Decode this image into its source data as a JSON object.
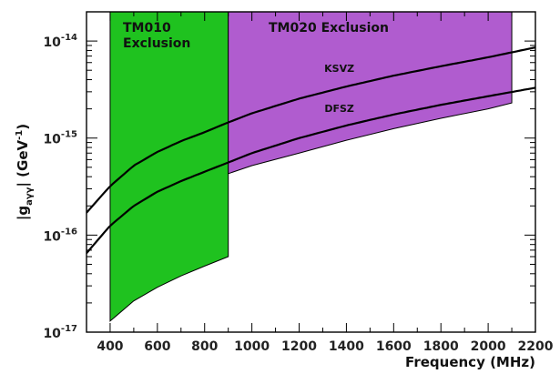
{
  "chart_data": {
    "type": "area",
    "xlabel": "Frequency (MHz)",
    "ylabel": "|g_{aγγ}| (GeV^{-1})",
    "xlim": [
      300,
      2200
    ],
    "ylim": [
      1e-17,
      2e-14
    ],
    "yscale": "log",
    "x_ticks": [
      400,
      600,
      800,
      1000,
      1200,
      1400,
      1600,
      1800,
      2000,
      2200
    ],
    "y_ticks": [
      {
        "value": 1e-17,
        "base": "10",
        "exp": "-17"
      },
      {
        "value": 1e-16,
        "base": "10",
        "exp": "-16"
      },
      {
        "value": 1e-15,
        "base": "10",
        "exp": "-15"
      },
      {
        "value": 1e-14,
        "base": "10",
        "exp": "-14"
      }
    ],
    "regions": [
      {
        "label_lines": [
          "TM010",
          "Exclusion"
        ],
        "color": "#1fc21f",
        "x_range": [
          400,
          900
        ],
        "lower": [
          [
            400,
            1.3e-17
          ],
          [
            500,
            2.1e-17
          ],
          [
            600,
            2.9e-17
          ],
          [
            700,
            3.8e-17
          ],
          [
            800,
            4.8e-17
          ],
          [
            900,
            6e-17
          ]
        ],
        "upper": 2e-14
      },
      {
        "label_lines": [
          "TM020 Exclusion"
        ],
        "color": "#b05ccf",
        "x_range": [
          900,
          2100
        ],
        "lower": [
          [
            900,
            4.3e-16
          ],
          [
            1000,
            5.2e-16
          ],
          [
            1200,
            7e-16
          ],
          [
            1400,
            9.5e-16
          ],
          [
            1600,
            1.25e-15
          ],
          [
            1800,
            1.6e-15
          ],
          [
            2000,
            2e-15
          ],
          [
            2100,
            2.3e-15
          ]
        ],
        "upper": 2e-14
      }
    ],
    "series": [
      {
        "name": "KSVZ",
        "x": [
          300,
          400,
          500,
          600,
          700,
          800,
          900,
          1000,
          1200,
          1400,
          1600,
          1800,
          2000,
          2200
        ],
        "values": [
          1.7e-16,
          3.2e-16,
          5.2e-16,
          7.2e-16,
          9.3e-16,
          1.15e-15,
          1.45e-15,
          1.8e-15,
          2.55e-15,
          3.4e-15,
          4.4e-15,
          5.5e-15,
          6.8e-15,
          8.6e-15
        ]
      },
      {
        "name": "DFSZ",
        "x": [
          300,
          400,
          500,
          600,
          700,
          800,
          900,
          1000,
          1200,
          1400,
          1600,
          1800,
          2000,
          2200
        ],
        "values": [
          6.5e-17,
          1.25e-16,
          2e-16,
          2.8e-16,
          3.6e-16,
          4.5e-16,
          5.6e-16,
          7e-16,
          1e-15,
          1.35e-15,
          1.75e-15,
          2.2e-15,
          2.7e-15,
          3.3e-15
        ]
      }
    ],
    "series_labels": [
      {
        "text": "KSVZ",
        "x": 1370,
        "y": 4.8e-15
      },
      {
        "text": "DFSZ",
        "x": 1370,
        "y": 1.85e-15
      }
    ]
  }
}
